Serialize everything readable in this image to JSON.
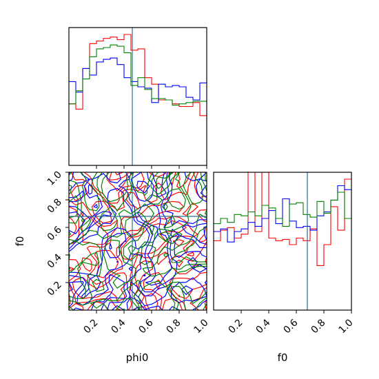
{
  "chart_data": {
    "type": "corner",
    "parameters": [
      "phi0",
      "f0"
    ],
    "series_colors": [
      "#ff0000",
      "#0000ff",
      "#008000"
    ],
    "truth": {
      "phi0": 0.46,
      "f0": 0.68,
      "color": "#2e6e8e"
    },
    "panels": [
      {
        "id": "phi0-histogram",
        "type": "histogram",
        "xlim": [
          0,
          1
        ],
        "bin_edges": [
          0.0,
          0.05,
          0.1,
          0.15,
          0.2,
          0.25,
          0.3,
          0.35,
          0.4,
          0.45,
          0.5,
          0.55,
          0.6,
          0.65,
          0.7,
          0.75,
          0.8,
          0.85,
          0.9,
          0.95,
          1.0
        ],
        "series": [
          {
            "color": "#ff0000",
            "values": [
              0.47,
              0.43,
              0.74,
              0.93,
              0.95,
              0.97,
              0.98,
              0.96,
              1.0,
              0.88,
              0.89,
              0.67,
              0.62,
              0.5,
              0.5,
              0.47,
              0.45,
              0.45,
              0.48,
              0.38
            ]
          },
          {
            "color": "#0000ff",
            "values": [
              0.64,
              0.56,
              0.74,
              0.69,
              0.79,
              0.81,
              0.82,
              0.77,
              0.67,
              0.64,
              0.6,
              0.59,
              0.48,
              0.62,
              0.6,
              0.61,
              0.6,
              0.52,
              0.5,
              0.63
            ]
          },
          {
            "color": "#008000",
            "values": [
              0.47,
              0.57,
              0.66,
              0.83,
              0.89,
              0.9,
              0.92,
              0.91,
              0.86,
              0.61,
              0.67,
              0.58,
              0.51,
              0.51,
              0.5,
              0.46,
              0.47,
              0.48,
              0.49,
              0.49
            ]
          }
        ]
      },
      {
        "id": "f0-histogram",
        "type": "histogram",
        "xlim": [
          0,
          1
        ],
        "xticks": [
          0.2,
          0.4,
          0.6,
          0.8,
          1.0
        ],
        "xtick_labels": [
          "0.2",
          "0.4",
          "0.6",
          "0.8",
          "1.0"
        ],
        "xlabel": "f0",
        "bin_edges": [
          0.0,
          0.05,
          0.1,
          0.15,
          0.2,
          0.25,
          0.3,
          0.35,
          0.4,
          0.45,
          0.5,
          0.55,
          0.6,
          0.65,
          0.7,
          0.75,
          0.8,
          0.85,
          0.9,
          0.95,
          1.0
        ],
        "series": [
          {
            "color": "#ff0000",
            "values": [
              0.53,
              0.61,
              0.63,
              0.55,
              0.58,
              1.06,
              0.6,
              1.06,
              0.55,
              0.53,
              0.54,
              0.5,
              0.55,
              0.53,
              0.62,
              0.34,
              0.5,
              0.79,
              0.61,
              1.0
            ]
          },
          {
            "color": "#0000ff",
            "values": [
              0.6,
              0.62,
              0.52,
              0.6,
              0.62,
              0.67,
              0.64,
              0.7,
              0.76,
              0.66,
              0.85,
              0.68,
              0.63,
              0.64,
              0.61,
              0.72,
              0.75,
              0.84,
              0.95,
              0.92
            ]
          },
          {
            "color": "#008000",
            "values": [
              0.66,
              0.7,
              0.67,
              0.73,
              0.72,
              0.75,
              0.72,
              0.8,
              0.78,
              0.7,
              0.64,
              0.81,
              0.82,
              0.73,
              0.71,
              0.83,
              0.74,
              0.84,
              0.9,
              0.7
            ]
          }
        ]
      },
      {
        "id": "phi0-f0-contour",
        "type": "contour",
        "xlim": [
          0,
          1
        ],
        "ylim": [
          0,
          1
        ],
        "xticks": [
          0.2,
          0.4,
          0.6,
          0.8,
          1.0
        ],
        "xtick_labels": [
          "0.2",
          "0.4",
          "0.6",
          "0.8",
          "1.0"
        ],
        "yticks": [
          0.2,
          0.4,
          0.6,
          0.8,
          1.0
        ],
        "ytick_labels": [
          "0.2",
          "0.4",
          "0.6",
          "0.8",
          "1.0"
        ],
        "xlabel": "phi0",
        "ylabel": "f0"
      }
    ]
  }
}
